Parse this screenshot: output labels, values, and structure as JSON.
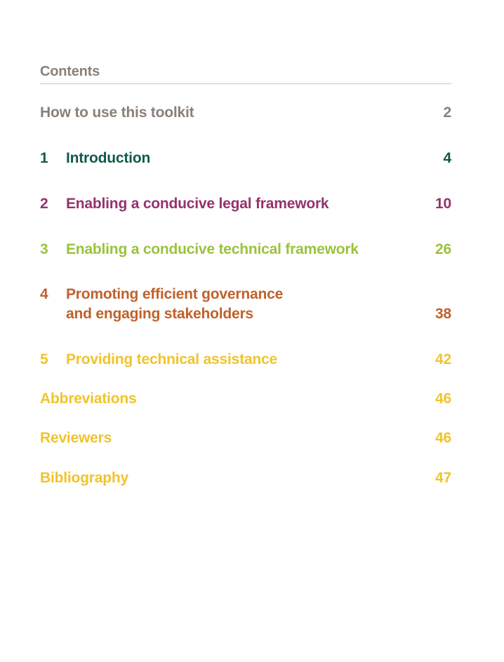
{
  "contents": {
    "heading": "Contents",
    "heading_color": "#8a8079"
  },
  "entries": [
    {
      "number": "",
      "title_lines": [
        "How to use this toolkit"
      ],
      "page": "2",
      "color": "#8a8079"
    },
    {
      "number": "1",
      "title_lines": [
        "Introduction"
      ],
      "page": "4",
      "color": "#0f5a4c"
    },
    {
      "number": "2",
      "title_lines": [
        "Enabling a conducive legal framework"
      ],
      "page": "10",
      "color": "#93336b"
    },
    {
      "number": "3",
      "title_lines": [
        "Enabling a conducive technical framework"
      ],
      "page": "26",
      "color": "#9bc23c"
    },
    {
      "number": "4",
      "title_lines": [
        "Promoting efficient governance",
        "and engaging stakeholders"
      ],
      "page": "38",
      "color": "#c0612b"
    },
    {
      "number": "5",
      "title_lines": [
        "Providing technical assistance"
      ],
      "page": "42",
      "color": "#f0c42a"
    },
    {
      "number": "",
      "title_lines": [
        "Abbreviations"
      ],
      "page": "46",
      "color": "#f0c42a"
    },
    {
      "number": "",
      "title_lines": [
        "Reviewers"
      ],
      "page": "46",
      "color": "#f0c42a"
    },
    {
      "number": "",
      "title_lines": [
        "Bibliography"
      ],
      "page": "47",
      "color": "#f0c42a"
    }
  ]
}
